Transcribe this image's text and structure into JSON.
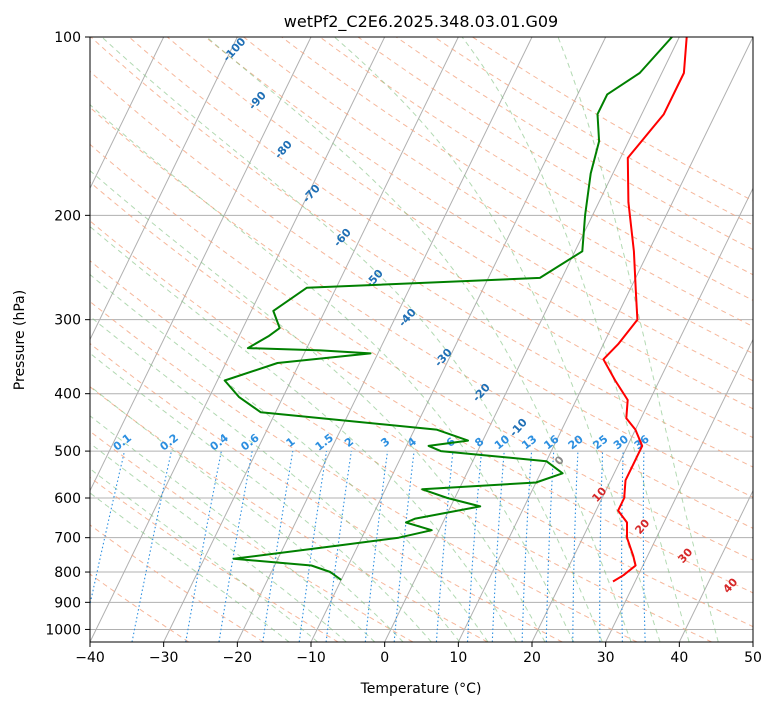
{
  "chart_data": {
    "type": "skewt",
    "title": "wetPf2_C2E6.2025.348.03.01.G09",
    "xlabel": "Temperature (°C)",
    "ylabel": "Pressure (hPa)",
    "xlim": [
      -40,
      50
    ],
    "ylim": [
      1050,
      100
    ],
    "x_ticks": [
      -40,
      -30,
      -20,
      -10,
      0,
      10,
      20,
      30,
      40,
      50
    ],
    "x_tick_labels": [
      "−40",
      "−30",
      "−20",
      "−10",
      "0",
      "10",
      "20",
      "30",
      "40",
      "50"
    ],
    "y_ticks": [
      100,
      200,
      300,
      400,
      500,
      600,
      700,
      800,
      900,
      1000
    ],
    "y_tick_labels": [
      "100",
      "200",
      "300",
      "400",
      "500",
      "600",
      "700",
      "800",
      "900",
      "1000"
    ],
    "dry_adiabat_labels": [
      "-100",
      "-90",
      "-80",
      "-70",
      "-60",
      "-50",
      "-40",
      "-30",
      "-20",
      "-10",
      "0",
      "10",
      "20",
      "30",
      "40"
    ],
    "mixing_ratio_labels": [
      "0.1",
      "0.2",
      "0.4",
      "0.6",
      "1",
      "1.5",
      "2",
      "3",
      "4",
      "6",
      "8",
      "10",
      "13",
      "16",
      "20",
      "25",
      "30",
      "36"
    ],
    "series": [
      {
        "name": "temperature",
        "color": "#ff0000",
        "points": [
          [
            1,
            100
          ],
          [
            3,
            115
          ],
          [
            3,
            135
          ],
          [
            1,
            160
          ],
          [
            4,
            190
          ],
          [
            8,
            230
          ],
          [
            11,
            270
          ],
          [
            13,
            300
          ],
          [
            12,
            330
          ],
          [
            11,
            350
          ],
          [
            14,
            380
          ],
          [
            17,
            410
          ],
          [
            18,
            440
          ],
          [
            20,
            460
          ],
          [
            22,
            490
          ],
          [
            22,
            520
          ],
          [
            22,
            560
          ],
          [
            23,
            600
          ],
          [
            23,
            630
          ],
          [
            25,
            660
          ],
          [
            26,
            700
          ],
          [
            28,
            750
          ],
          [
            29,
            780
          ],
          [
            28,
            810
          ],
          [
            27,
            830
          ]
        ]
      },
      {
        "name": "dewpoint",
        "color": "#008000",
        "points": [
          [
            -1,
            100
          ],
          [
            -3,
            115
          ],
          [
            -6,
            125
          ],
          [
            -6,
            135
          ],
          [
            -4,
            150
          ],
          [
            -3,
            170
          ],
          [
            -1,
            200
          ],
          [
            1,
            230
          ],
          [
            -3,
            255
          ],
          [
            -34,
            265
          ],
          [
            -37,
            290
          ],
          [
            -35,
            310
          ],
          [
            -36,
            320
          ],
          [
            -38,
            335
          ],
          [
            -28,
            338
          ],
          [
            -21,
            342
          ],
          [
            -33,
            355
          ],
          [
            -39,
            380
          ],
          [
            -36,
            405
          ],
          [
            -32,
            430
          ],
          [
            -7,
            460
          ],
          [
            -2,
            480
          ],
          [
            -7,
            490
          ],
          [
            -5,
            500
          ],
          [
            10,
            520
          ],
          [
            13,
            545
          ],
          [
            10,
            565
          ],
          [
            -5,
            580
          ],
          [
            -1,
            600
          ],
          [
            4,
            620
          ],
          [
            -4,
            650
          ],
          [
            -5,
            660
          ],
          [
            -1,
            680
          ],
          [
            -5,
            700
          ],
          [
            -12,
            720
          ],
          [
            -26,
            760
          ],
          [
            -15,
            780
          ],
          [
            -12,
            800
          ],
          [
            -10,
            825
          ]
        ]
      }
    ]
  }
}
